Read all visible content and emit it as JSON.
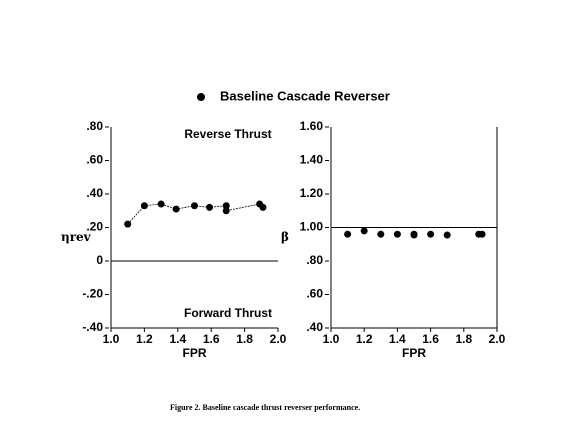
{
  "legend_label": "Baseline Cascade Reverser",
  "caption": "Figure 2.  Baseline cascade thrust reverser performance.",
  "chart_data": [
    {
      "type": "scatter",
      "ylabel": "ηrev",
      "xlabel": "FPR",
      "annotations": [
        "Reverse Thrust",
        "Forward Thrust"
      ],
      "xlim": [
        1.0,
        2.0
      ],
      "xticks": [
        {
          "value": 1.0,
          "label": "1.0"
        },
        1.2,
        1.4,
        1.6,
        1.8,
        {
          "value": 2.0,
          "label": "2.0"
        }
      ],
      "ylim": [
        -0.4,
        0.8
      ],
      "yticks": [
        {
          "value": 0.8,
          "label": ".80"
        },
        {
          "value": 0.6,
          "label": ".60"
        },
        {
          "value": 0.4,
          "label": ".40"
        },
        {
          "value": 0.2,
          "label": ".20"
        },
        0,
        {
          "value": -0.2,
          "label": "-.20"
        },
        {
          "value": -0.4,
          "label": "-.40"
        }
      ],
      "hline": 0,
      "box": false,
      "series": [
        {
          "name": "Baseline Cascade Reverser",
          "color": "#000000",
          "line": true,
          "x": [
            1.1,
            1.2,
            1.3,
            1.39,
            1.5,
            1.59,
            1.69,
            1.69,
            1.89,
            1.91
          ],
          "values": [
            0.22,
            0.33,
            0.34,
            0.31,
            0.33,
            0.32,
            0.33,
            0.3,
            0.34,
            0.32
          ]
        }
      ]
    },
    {
      "type": "scatter",
      "ylabel": "β",
      "xlabel": "FPR",
      "xlim": [
        1.0,
        2.0
      ],
      "xticks": [
        {
          "value": 1.0,
          "label": "1.0"
        },
        1.2,
        1.4,
        1.6,
        1.8,
        {
          "value": 2.0,
          "label": "2.0"
        }
      ],
      "ylim": [
        0.4,
        1.6
      ],
      "yticks": [
        {
          "value": 1.6,
          "label": "1.60"
        },
        {
          "value": 1.4,
          "label": "1.40"
        },
        {
          "value": 1.2,
          "label": "1.20"
        },
        {
          "value": 1.0,
          "label": "1.00"
        },
        {
          "value": 0.8,
          "label": ".80"
        },
        {
          "value": 0.6,
          "label": ".60"
        },
        {
          "value": 0.4,
          "label": ".40"
        }
      ],
      "hline": 1.0,
      "box": true,
      "series": [
        {
          "color": "#000000",
          "line": false,
          "x": [
            1.1,
            1.2,
            1.3,
            1.4,
            1.5,
            1.5,
            1.6,
            1.7,
            1.89,
            1.91
          ],
          "values": [
            0.96,
            0.98,
            0.96,
            0.96,
            0.96,
            0.955,
            0.96,
            0.955,
            0.96,
            0.96
          ]
        }
      ]
    }
  ]
}
